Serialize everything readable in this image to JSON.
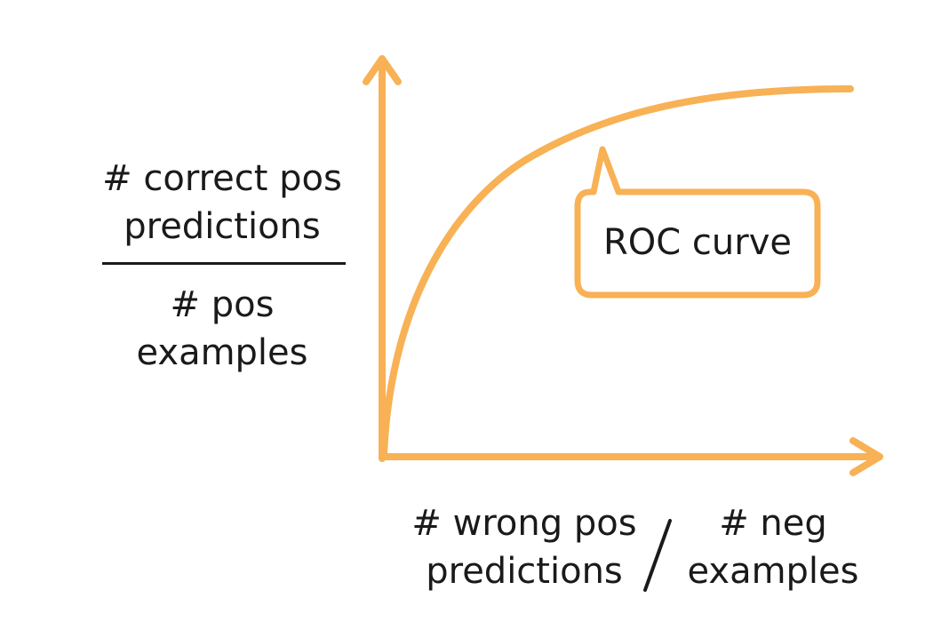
{
  "colors": {
    "accent": "#f8b155",
    "text": "#1a1a1a",
    "background": "#ffffff"
  },
  "y_label": {
    "numerator": [
      "# correct pos",
      "predictions"
    ],
    "denominator": [
      "# pos",
      "examples"
    ]
  },
  "x_label": {
    "numerator": [
      "# wrong pos",
      "predictions"
    ],
    "denominator": [
      "# neg",
      "examples"
    ]
  },
  "callout": {
    "label": "ROC curve"
  }
}
